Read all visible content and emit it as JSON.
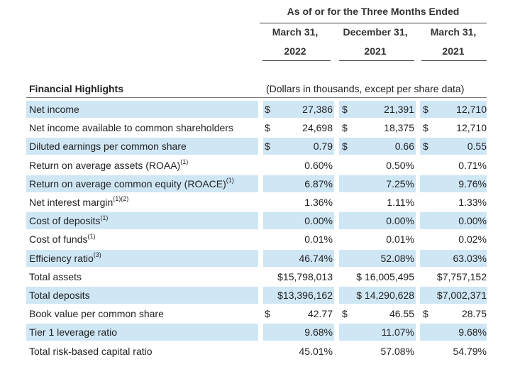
{
  "header": {
    "period_title": "As of or for the Three Months Ended",
    "columns": [
      {
        "month": "March 31,",
        "year": "2022"
      },
      {
        "month": "December 31,",
        "year": "2021"
      },
      {
        "month": "March 31,",
        "year": "2021"
      }
    ]
  },
  "section": {
    "title": "Financial Highlights",
    "units_note": "(Dollars in thousands, except per share data)"
  },
  "rows": [
    {
      "label": "Net income",
      "note": "",
      "cur": [
        "$",
        "$",
        "$"
      ],
      "values": [
        "27,386",
        "21,391",
        "12,710"
      ],
      "shaded": true
    },
    {
      "label": "Net income available to common shareholders",
      "note": "",
      "cur": [
        "$",
        "$",
        "$"
      ],
      "values": [
        "24,698",
        "18,375",
        "12,710"
      ],
      "shaded": false
    },
    {
      "label": "Diluted earnings per common share",
      "note": "",
      "cur": [
        "$",
        "$",
        "$"
      ],
      "values": [
        "0.79",
        "0.66",
        "0.55"
      ],
      "shaded": true
    },
    {
      "label": "Return on average assets (ROAA)",
      "note": "(1)",
      "cur": [
        "",
        "",
        ""
      ],
      "values": [
        "0.60%",
        "0.50%",
        "0.71%"
      ],
      "shaded": false
    },
    {
      "label": "Return on average common equity (ROACE)",
      "note": "(1)",
      "cur": [
        "",
        "",
        ""
      ],
      "values": [
        "6.87%",
        "7.25%",
        "9.76%"
      ],
      "shaded": true
    },
    {
      "label": "Net interest margin",
      "note": "(1)(2)",
      "cur": [
        "",
        "",
        ""
      ],
      "values": [
        "1.36%",
        "1.11%",
        "1.33%"
      ],
      "shaded": false
    },
    {
      "label": "Cost of deposits",
      "note": "(1)",
      "cur": [
        "",
        "",
        ""
      ],
      "values": [
        "0.00%",
        "0.00%",
        "0.00%"
      ],
      "shaded": true
    },
    {
      "label": "Cost of funds",
      "note": "(1)",
      "cur": [
        "",
        "",
        ""
      ],
      "values": [
        "0.01%",
        "0.01%",
        "0.02%"
      ],
      "shaded": false
    },
    {
      "label": "Efficiency ratio",
      "note": "(3)",
      "cur": [
        "",
        "",
        ""
      ],
      "values": [
        "46.74%",
        "52.08%",
        "63.03%"
      ],
      "shaded": true
    },
    {
      "label": "Total assets",
      "note": "",
      "cur": [
        "",
        "",
        ""
      ],
      "values": [
        "$15,798,013",
        "$ 16,005,495",
        "$7,757,152"
      ],
      "shaded": false
    },
    {
      "label": "Total deposits",
      "note": "",
      "cur": [
        "",
        "",
        ""
      ],
      "values": [
        "$13,396,162",
        "$ 14,290,628",
        "$7,002,371"
      ],
      "shaded": true
    },
    {
      "label": "Book value per common share",
      "note": "",
      "cur": [
        "$",
        "$",
        "$"
      ],
      "values": [
        "42.77",
        "46.55",
        "28.75"
      ],
      "shaded": false
    },
    {
      "label": "Tier 1 leverage ratio",
      "note": "",
      "cur": [
        "",
        "",
        ""
      ],
      "values": [
        "9.68%",
        "11.07%",
        "9.68%"
      ],
      "shaded": true
    },
    {
      "label": "Total risk-based capital ratio",
      "note": "",
      "cur": [
        "",
        "",
        ""
      ],
      "values": [
        "45.01%",
        "57.08%",
        "54.79%"
      ],
      "shaded": false
    }
  ]
}
